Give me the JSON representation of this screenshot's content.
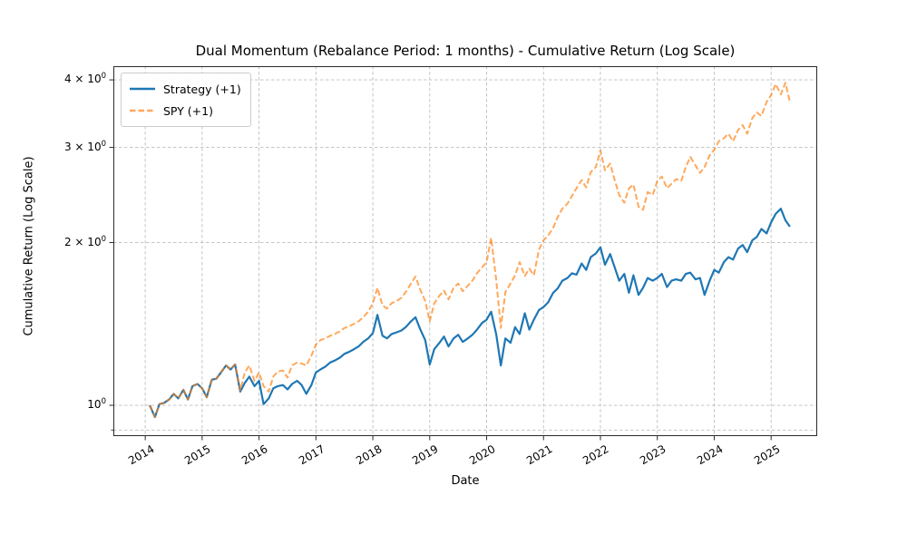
{
  "title": "Dual Momentum (Rebalance Period: 1 months) - Cumulative Return (Log Scale)",
  "axes": {
    "x_label": "Date",
    "y_label": "Cumulative Return (Log Scale)",
    "x_ticks": [
      "2014",
      "2015",
      "2016",
      "2017",
      "2018",
      "2019",
      "2020",
      "2021",
      "2022",
      "2023",
      "2024",
      "2025"
    ],
    "y_ticks": [
      {
        "value": 1,
        "base": "10",
        "exp": "0"
      },
      {
        "value": 2,
        "base": "2 × 10",
        "exp": "0"
      },
      {
        "value": 3,
        "base": "3 × 10",
        "exp": "0"
      },
      {
        "value": 4,
        "base": "4 × 10",
        "exp": "0"
      }
    ]
  },
  "legend": {
    "position": "upper left",
    "items": [
      {
        "label": "Strategy (+1)",
        "color": "#1f77b4",
        "dash": "solid",
        "width": 2.2,
        "opacity": 1
      },
      {
        "label": "SPY (+1)",
        "color": "#ff7f0e",
        "dash": "dashed",
        "width": 2.0,
        "opacity": 0.68
      }
    ]
  },
  "style": {
    "background": "#ffffff",
    "grid_color": "#bfbfbf",
    "spine_color": "#2a2a2a",
    "strategy_color": "#1f77b4",
    "spy_color": "#ff7f0e"
  },
  "chart_data": {
    "type": "line",
    "yscale": "log",
    "grid": true,
    "x_unit": "decimal_year",
    "xlim": [
      2013.44,
      2025.81
    ],
    "ylim": [
      0.877,
      4.24
    ],
    "x_gridlines": [
      2014,
      2015,
      2016,
      2017,
      2018,
      2019,
      2020,
      2021,
      2022,
      2023,
      2024,
      2025
    ],
    "y_gridlines": [
      0.9,
      1,
      2,
      3,
      4
    ],
    "y_minor_ticks": [
      0.9
    ],
    "x": [
      2014.08,
      2014.17,
      2014.25,
      2014.33,
      2014.42,
      2014.5,
      2014.58,
      2014.67,
      2014.75,
      2014.83,
      2014.92,
      2015,
      2015.08,
      2015.17,
      2015.25,
      2015.33,
      2015.42,
      2015.5,
      2015.58,
      2015.67,
      2015.75,
      2015.83,
      2015.92,
      2016,
      2016.08,
      2016.17,
      2016.25,
      2016.33,
      2016.42,
      2016.5,
      2016.58,
      2016.67,
      2016.75,
      2016.83,
      2016.92,
      2017,
      2017.08,
      2017.17,
      2017.25,
      2017.33,
      2017.42,
      2017.5,
      2017.58,
      2017.67,
      2017.75,
      2017.83,
      2017.92,
      2018,
      2018.08,
      2018.17,
      2018.25,
      2018.33,
      2018.42,
      2018.5,
      2018.58,
      2018.67,
      2018.75,
      2018.83,
      2018.92,
      2019,
      2019.08,
      2019.17,
      2019.25,
      2019.33,
      2019.42,
      2019.5,
      2019.58,
      2019.67,
      2019.75,
      2019.83,
      2019.92,
      2020,
      2020.08,
      2020.17,
      2020.25,
      2020.33,
      2020.42,
      2020.5,
      2020.58,
      2020.67,
      2020.75,
      2020.83,
      2020.92,
      2021,
      2021.08,
      2021.17,
      2021.25,
      2021.33,
      2021.42,
      2021.5,
      2021.58,
      2021.67,
      2021.75,
      2021.83,
      2021.92,
      2022,
      2022.08,
      2022.17,
      2022.25,
      2022.33,
      2022.42,
      2022.5,
      2022.58,
      2022.67,
      2022.75,
      2022.83,
      2022.92,
      2023,
      2023.08,
      2023.17,
      2023.25,
      2023.33,
      2023.42,
      2023.5,
      2023.58,
      2023.67,
      2023.75,
      2023.83,
      2023.92,
      2024,
      2024.08,
      2024.17,
      2024.25,
      2024.33,
      2024.42,
      2024.5,
      2024.58,
      2024.67,
      2024.75,
      2024.83,
      2024.92,
      2025,
      2025.08,
      2025.17,
      2025.25,
      2025.33
    ],
    "series": [
      {
        "name": "Strategy (+1)",
        "values": [
          1.0,
          0.951,
          1.005,
          1.01,
          1.025,
          1.05,
          1.03,
          1.068,
          1.025,
          1.085,
          1.095,
          1.075,
          1.035,
          1.115,
          1.12,
          1.15,
          1.185,
          1.165,
          1.19,
          1.06,
          1.1,
          1.13,
          1.085,
          1.11,
          1.005,
          1.03,
          1.075,
          1.085,
          1.09,
          1.07,
          1.095,
          1.11,
          1.09,
          1.05,
          1.09,
          1.15,
          1.165,
          1.18,
          1.2,
          1.21,
          1.225,
          1.245,
          1.255,
          1.27,
          1.285,
          1.31,
          1.33,
          1.36,
          1.47,
          1.345,
          1.33,
          1.355,
          1.365,
          1.375,
          1.395,
          1.43,
          1.455,
          1.385,
          1.32,
          1.19,
          1.27,
          1.305,
          1.34,
          1.285,
          1.33,
          1.35,
          1.31,
          1.33,
          1.35,
          1.38,
          1.42,
          1.44,
          1.49,
          1.35,
          1.185,
          1.33,
          1.305,
          1.395,
          1.355,
          1.48,
          1.38,
          1.44,
          1.5,
          1.52,
          1.55,
          1.615,
          1.645,
          1.7,
          1.72,
          1.755,
          1.745,
          1.83,
          1.78,
          1.88,
          1.91,
          1.96,
          1.82,
          1.905,
          1.8,
          1.7,
          1.75,
          1.615,
          1.74,
          1.6,
          1.65,
          1.72,
          1.7,
          1.72,
          1.75,
          1.655,
          1.7,
          1.71,
          1.7,
          1.75,
          1.76,
          1.71,
          1.72,
          1.6,
          1.7,
          1.78,
          1.76,
          1.84,
          1.88,
          1.86,
          1.95,
          1.98,
          1.92,
          2.02,
          2.05,
          2.12,
          2.08,
          2.18,
          2.26,
          2.31,
          2.2,
          2.14
        ]
      },
      {
        "name": "SPY (+1)",
        "values": [
          1.0,
          0.951,
          1.005,
          1.01,
          1.025,
          1.05,
          1.03,
          1.068,
          1.025,
          1.085,
          1.095,
          1.075,
          1.035,
          1.115,
          1.12,
          1.15,
          1.185,
          1.165,
          1.19,
          1.065,
          1.15,
          1.185,
          1.11,
          1.15,
          1.085,
          1.06,
          1.13,
          1.155,
          1.16,
          1.125,
          1.185,
          1.2,
          1.195,
          1.185,
          1.235,
          1.295,
          1.32,
          1.33,
          1.345,
          1.355,
          1.37,
          1.39,
          1.4,
          1.415,
          1.43,
          1.455,
          1.49,
          1.545,
          1.65,
          1.53,
          1.51,
          1.545,
          1.56,
          1.58,
          1.62,
          1.68,
          1.73,
          1.64,
          1.56,
          1.43,
          1.545,
          1.595,
          1.63,
          1.57,
          1.65,
          1.68,
          1.625,
          1.665,
          1.7,
          1.755,
          1.8,
          1.84,
          2.04,
          1.7,
          1.39,
          1.62,
          1.68,
          1.74,
          1.84,
          1.735,
          1.79,
          1.74,
          1.94,
          2.02,
          2.06,
          2.13,
          2.23,
          2.31,
          2.36,
          2.44,
          2.52,
          2.61,
          2.53,
          2.7,
          2.76,
          2.96,
          2.72,
          2.8,
          2.61,
          2.45,
          2.37,
          2.52,
          2.56,
          2.33,
          2.3,
          2.48,
          2.45,
          2.6,
          2.65,
          2.52,
          2.57,
          2.62,
          2.6,
          2.76,
          2.88,
          2.78,
          2.69,
          2.76,
          2.9,
          2.97,
          3.08,
          3.12,
          3.18,
          3.08,
          3.23,
          3.3,
          3.18,
          3.4,
          3.48,
          3.43,
          3.64,
          3.75,
          3.93,
          3.76,
          3.95,
          3.64
        ]
      }
    ]
  }
}
